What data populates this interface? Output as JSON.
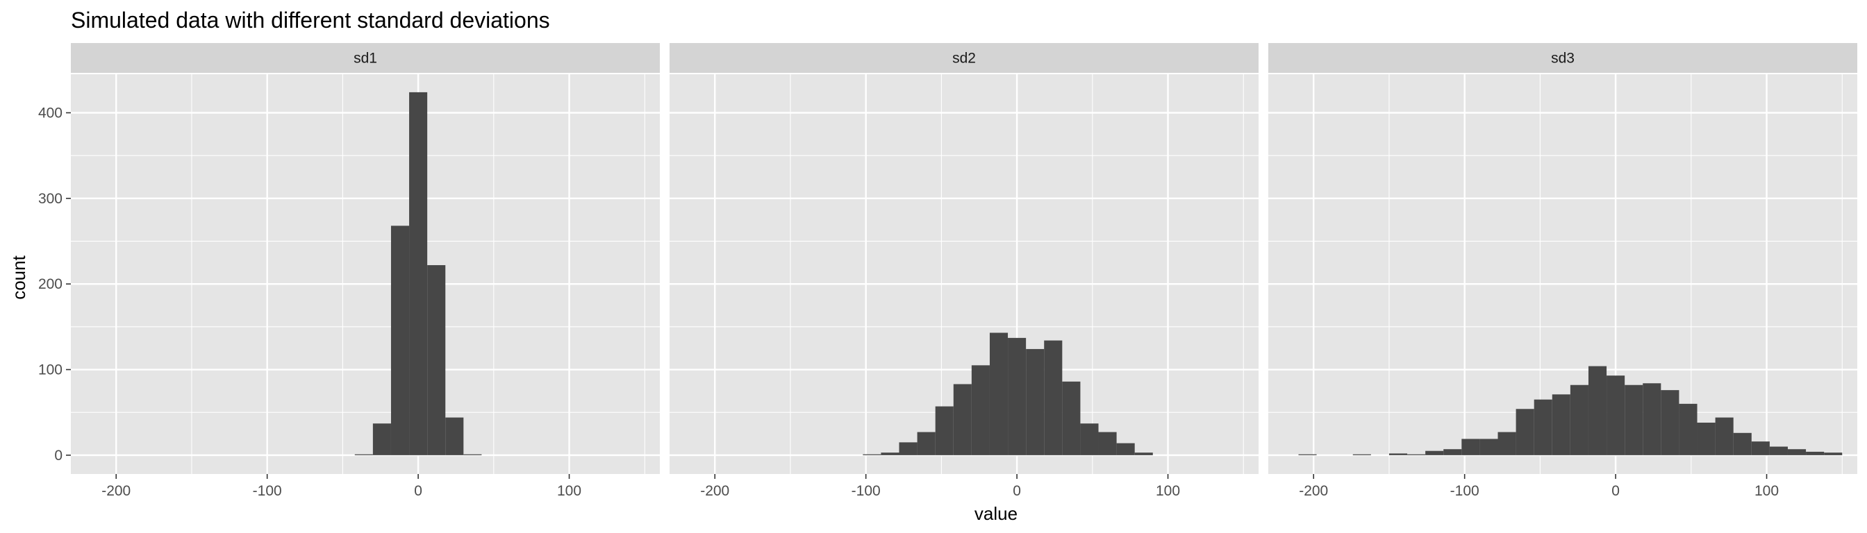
{
  "chart_data": {
    "type": "bar",
    "subtype": "faceted-histogram",
    "title": "Simulated data with different standard deviations",
    "xlabel": "value",
    "ylabel": "count",
    "xlim": [
      -230,
      160
    ],
    "ylim": [
      -22,
      445
    ],
    "x_ticks": [
      -200,
      -100,
      0,
      100
    ],
    "y_ticks": [
      0,
      100,
      200,
      300,
      400
    ],
    "grid": true,
    "colors": {
      "panel_bg": "#e5e5e5",
      "strip_bg": "#d4d4d4",
      "grid": "#ffffff",
      "bar": "#474747",
      "tick": "#333333"
    },
    "facets": [
      {
        "name": "sd1",
        "bin_width": 12,
        "bins": [
          {
            "x0": -42,
            "x1": -30,
            "count": 1
          },
          {
            "x0": -30,
            "x1": -18,
            "count": 37
          },
          {
            "x0": -18,
            "x1": -6,
            "count": 268
          },
          {
            "x0": -6,
            "x1": 6,
            "count": 424
          },
          {
            "x0": 6,
            "x1": 18,
            "count": 222
          },
          {
            "x0": 18,
            "x1": 30,
            "count": 44
          },
          {
            "x0": 30,
            "x1": 42,
            "count": 1
          }
        ]
      },
      {
        "name": "sd2",
        "bin_width": 12,
        "bins": [
          {
            "x0": -102,
            "x1": -90,
            "count": 1
          },
          {
            "x0": -90,
            "x1": -78,
            "count": 3
          },
          {
            "x0": -78,
            "x1": -66,
            "count": 15
          },
          {
            "x0": -66,
            "x1": -54,
            "count": 27
          },
          {
            "x0": -54,
            "x1": -42,
            "count": 57
          },
          {
            "x0": -42,
            "x1": -30,
            "count": 83
          },
          {
            "x0": -30,
            "x1": -18,
            "count": 105
          },
          {
            "x0": -18,
            "x1": -6,
            "count": 143
          },
          {
            "x0": -6,
            "x1": 6,
            "count": 137
          },
          {
            "x0": 6,
            "x1": 18,
            "count": 124
          },
          {
            "x0": 18,
            "x1": 30,
            "count": 134
          },
          {
            "x0": 30,
            "x1": 42,
            "count": 86
          },
          {
            "x0": 42,
            "x1": 54,
            "count": 37
          },
          {
            "x0": 54,
            "x1": 66,
            "count": 27
          },
          {
            "x0": 66,
            "x1": 78,
            "count": 14
          },
          {
            "x0": 78,
            "x1": 90,
            "count": 3
          }
        ]
      },
      {
        "name": "sd3",
        "bin_width": 12,
        "bins": [
          {
            "x0": -210,
            "x1": -198,
            "count": 1
          },
          {
            "x0": -174,
            "x1": -162,
            "count": 1
          },
          {
            "x0": -150,
            "x1": -138,
            "count": 2
          },
          {
            "x0": -138,
            "x1": -126,
            "count": 1
          },
          {
            "x0": -126,
            "x1": -114,
            "count": 5
          },
          {
            "x0": -114,
            "x1": -102,
            "count": 7
          },
          {
            "x0": -102,
            "x1": -90,
            "count": 19
          },
          {
            "x0": -90,
            "x1": -78,
            "count": 19
          },
          {
            "x0": -78,
            "x1": -66,
            "count": 27
          },
          {
            "x0": -66,
            "x1": -54,
            "count": 54
          },
          {
            "x0": -54,
            "x1": -42,
            "count": 65
          },
          {
            "x0": -42,
            "x1": -30,
            "count": 71
          },
          {
            "x0": -30,
            "x1": -18,
            "count": 82
          },
          {
            "x0": -18,
            "x1": -6,
            "count": 104
          },
          {
            "x0": -6,
            "x1": 6,
            "count": 93
          },
          {
            "x0": 6,
            "x1": 18,
            "count": 82
          },
          {
            "x0": 18,
            "x1": 30,
            "count": 84
          },
          {
            "x0": 30,
            "x1": 42,
            "count": 76
          },
          {
            "x0": 42,
            "x1": 54,
            "count": 60
          },
          {
            "x0": 54,
            "x1": 66,
            "count": 38
          },
          {
            "x0": 66,
            "x1": 78,
            "count": 44
          },
          {
            "x0": 78,
            "x1": 90,
            "count": 26
          },
          {
            "x0": 90,
            "x1": 102,
            "count": 16
          },
          {
            "x0": 102,
            "x1": 114,
            "count": 10
          },
          {
            "x0": 114,
            "x1": 126,
            "count": 7
          },
          {
            "x0": 126,
            "x1": 138,
            "count": 4
          },
          {
            "x0": 138,
            "x1": 150,
            "count": 3
          }
        ]
      }
    ]
  }
}
